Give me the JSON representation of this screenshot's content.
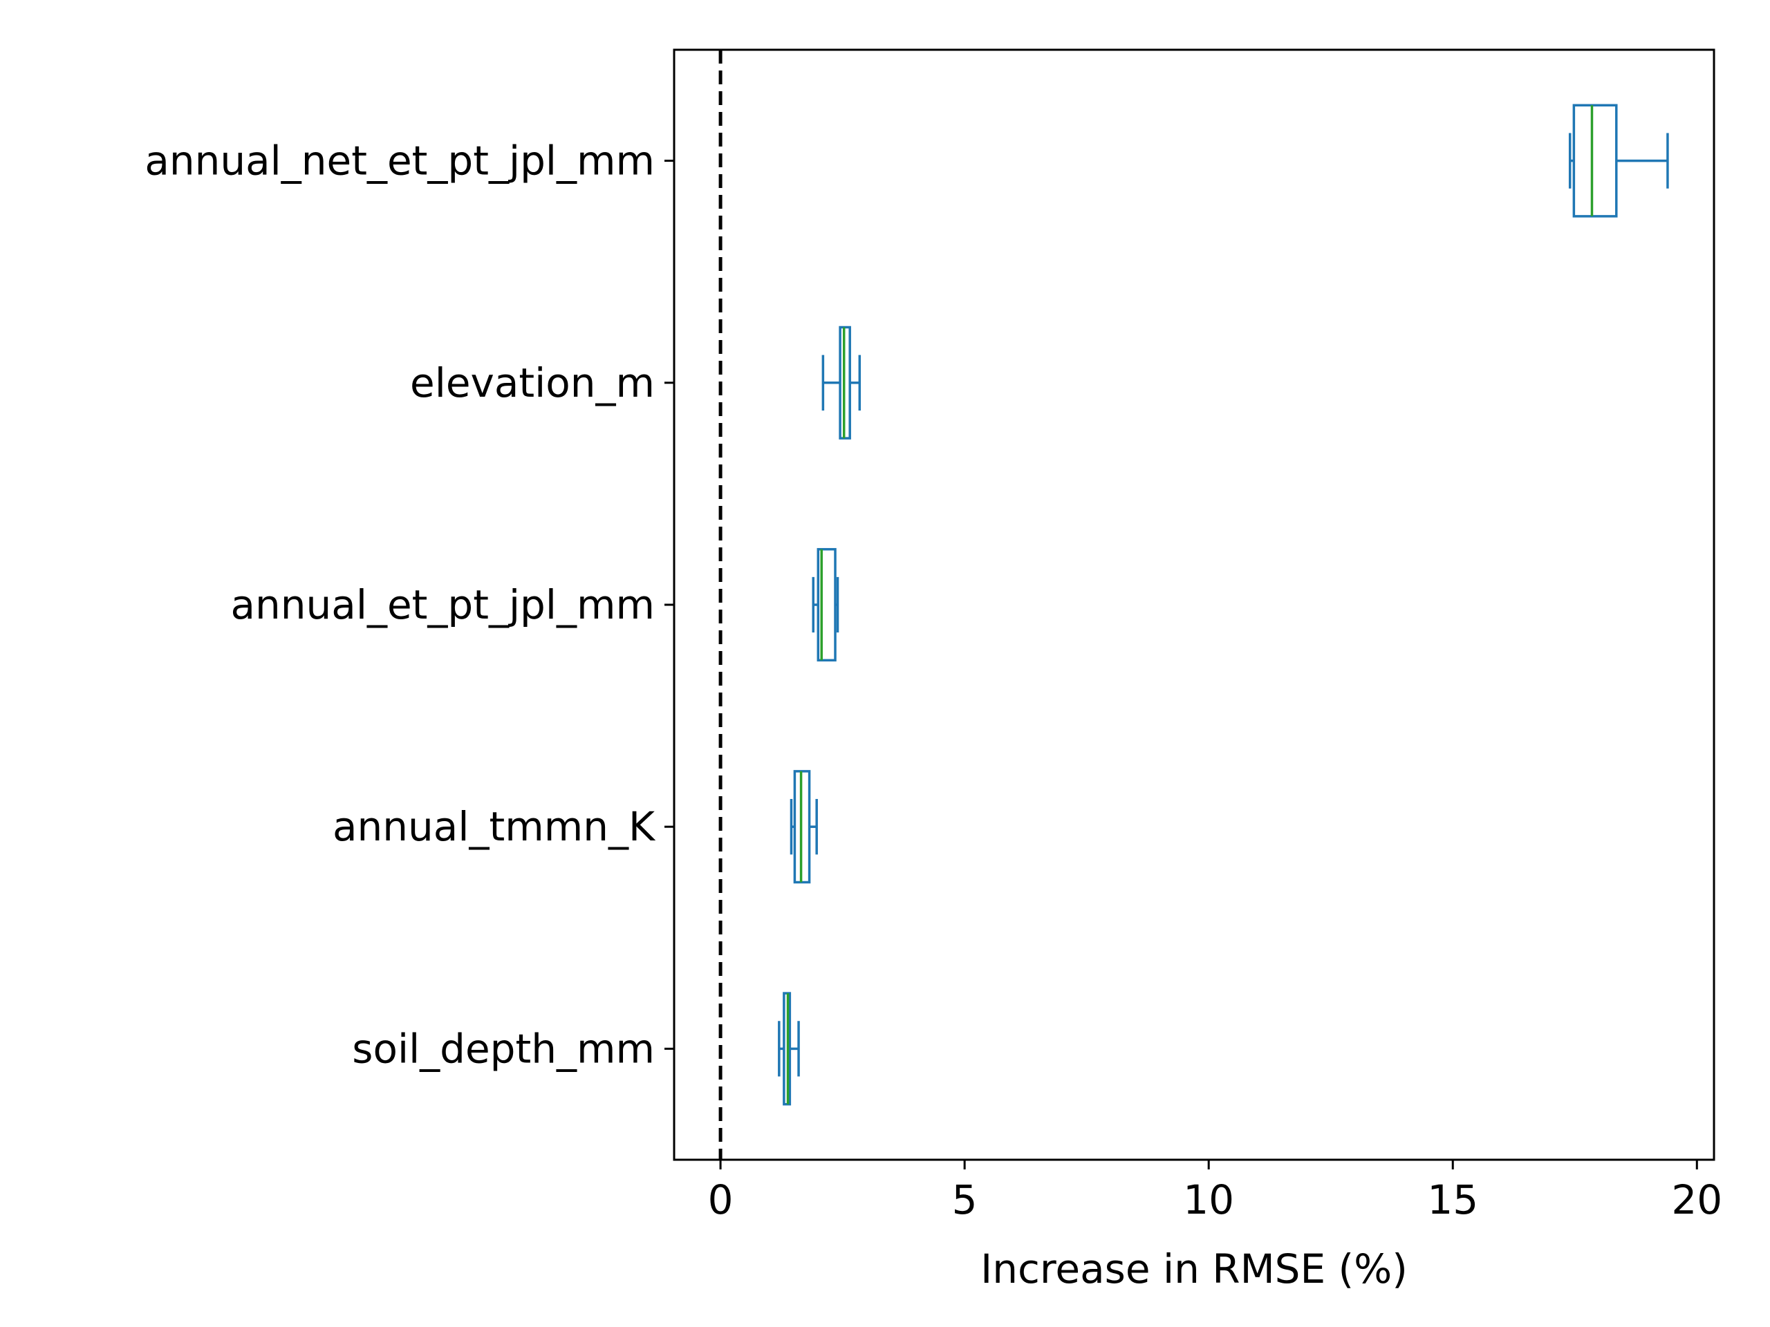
{
  "chart_data": {
    "type": "boxplot",
    "orientation": "horizontal",
    "xlabel": "Increase in RMSE (%)",
    "ylabel": "",
    "xlim": [
      -0.95,
      20.35
    ],
    "xticks": [
      0,
      5,
      10,
      15,
      20
    ],
    "reference_line": {
      "x": 0,
      "style": "dashed",
      "color": "#000000"
    },
    "colors": {
      "box": "#1f77b4",
      "median": "#2ca02c"
    },
    "categories": [
      "annual_net_et_pt_jpl_mm",
      "elevation_m",
      "annual_et_pt_jpl_mm",
      "annual_tmmn_K",
      "soil_depth_mm"
    ],
    "boxes": [
      {
        "label": "annual_net_et_pt_jpl_mm",
        "whislo": 17.4,
        "q1": 17.48,
        "med": 17.85,
        "q3": 18.35,
        "whishi": 19.4
      },
      {
        "label": "elevation_m",
        "whislo": 2.1,
        "q1": 2.45,
        "med": 2.53,
        "q3": 2.65,
        "whishi": 2.85
      },
      {
        "label": "annual_et_pt_jpl_mm",
        "whislo": 1.9,
        "q1": 2.0,
        "med": 2.07,
        "q3": 2.35,
        "whishi": 2.4
      },
      {
        "label": "annual_tmmn_K",
        "whislo": 1.45,
        "q1": 1.52,
        "med": 1.65,
        "q3": 1.82,
        "whishi": 1.97
      },
      {
        "label": "soil_depth_mm",
        "whislo": 1.2,
        "q1": 1.3,
        "med": 1.38,
        "q3": 1.42,
        "whishi": 1.6
      }
    ]
  }
}
